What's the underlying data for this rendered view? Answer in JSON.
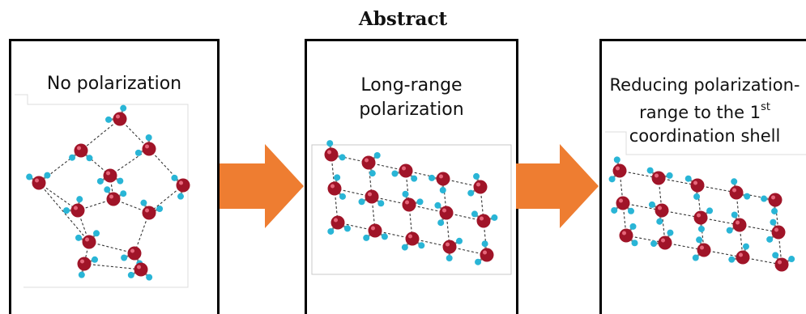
{
  "heading": "Abstract",
  "panels": [
    {
      "caption_lines": [
        "No polarization"
      ]
    },
    {
      "caption_lines": [
        "Long-range",
        "polarization"
      ]
    },
    {
      "caption_lines": [
        "Reducing polarization-",
        "range to the 1",
        "coordination shell"
      ],
      "superscript": "st"
    }
  ],
  "colors": {
    "oxygen": "#a01428",
    "hydrogen": "#29b5d6",
    "arrow": "#ee7d31",
    "border": "#000000"
  }
}
